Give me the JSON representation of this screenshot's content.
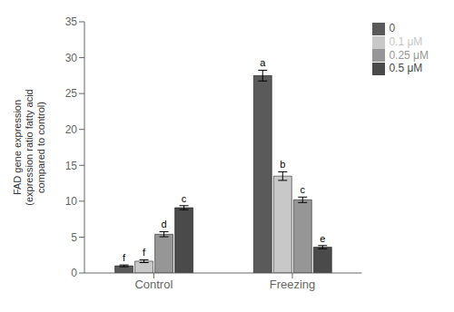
{
  "chart_data": {
    "type": "bar",
    "categories": [
      "Control",
      "Freezing"
    ],
    "series": [
      {
        "name": "0",
        "color": "#5a5a5a",
        "values": [
          1.0,
          27.5
        ],
        "errors": [
          0.12,
          0.75
        ],
        "annotations": [
          "f",
          "a"
        ]
      },
      {
        "name": "0.1 μM",
        "color": "#c8c8c8",
        "values": [
          1.65,
          13.5
        ],
        "errors": [
          0.2,
          0.6
        ],
        "annotations": [
          "f",
          "b"
        ]
      },
      {
        "name": "0.25 μM",
        "color": "#969696",
        "values": [
          5.4,
          10.2
        ],
        "errors": [
          0.35,
          0.38
        ],
        "annotations": [
          "d",
          "c"
        ]
      },
      {
        "name": "0.5 μM",
        "color": "#4a4a4a",
        "values": [
          9.1,
          3.6
        ],
        "errors": [
          0.28,
          0.22
        ],
        "annotations": [
          "c",
          "e"
        ]
      }
    ],
    "ylabel": "FAD gene expression\n(expression ratio fatty acid\ncompared to control)",
    "ylim": [
      0,
      35
    ],
    "yticks": [
      0,
      5,
      10,
      15,
      20,
      25,
      30,
      35
    ],
    "legend": "upper right",
    "grid": false
  }
}
